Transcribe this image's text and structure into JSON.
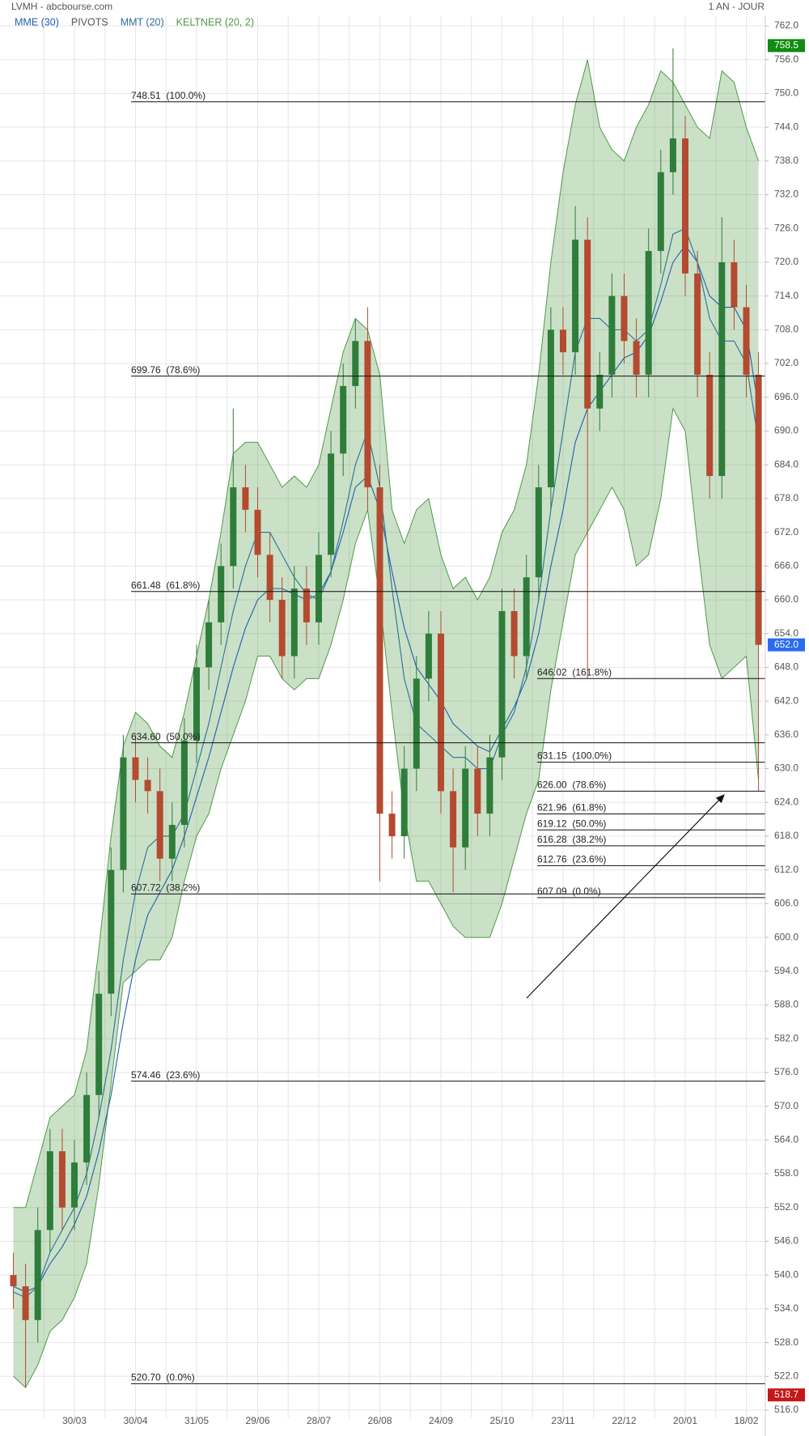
{
  "chart_data": {
    "type": "candlestick",
    "title": "LVMH - abcbourse.com",
    "subtitle": "1 AN - JOUR",
    "categories": [
      null,
      null,
      null,
      null,
      null,
      "30/03",
      null,
      null,
      null,
      null,
      "30/04",
      null,
      null,
      null,
      null,
      "31/05",
      null,
      null,
      null,
      null,
      "29/06",
      null,
      null,
      null,
      null,
      "28/07",
      null,
      null,
      null,
      null,
      "26/08",
      null,
      null,
      null,
      null,
      "24/09",
      null,
      null,
      null,
      null,
      "25/10",
      null,
      null,
      null,
      null,
      "23/11",
      null,
      null,
      null,
      null,
      "22/12",
      null,
      null,
      null,
      null,
      "20/01",
      null,
      null,
      null,
      null,
      "18/02",
      null
    ],
    "open": [
      540,
      538,
      532,
      548,
      562,
      552,
      560,
      572,
      590,
      612,
      632,
      628,
      626,
      614,
      620,
      635,
      648,
      656,
      666,
      680,
      676,
      668,
      660,
      650,
      662,
      656,
      668,
      686,
      698,
      706,
      680,
      622,
      618,
      630,
      646,
      654,
      626,
      616,
      630,
      622,
      632,
      658,
      650,
      664,
      680,
      708,
      704,
      724,
      694,
      700,
      714,
      706,
      700,
      722,
      736,
      742,
      718,
      700,
      682,
      720,
      712,
      700
    ],
    "high": [
      544,
      542,
      552,
      566,
      566,
      564,
      576,
      594,
      616,
      636,
      636,
      632,
      630,
      624,
      639,
      652,
      660,
      670,
      694,
      684,
      680,
      672,
      664,
      666,
      666,
      672,
      690,
      702,
      710,
      712,
      684,
      626,
      634,
      650,
      658,
      658,
      630,
      634,
      634,
      636,
      662,
      662,
      668,
      684,
      712,
      712,
      730,
      728,
      704,
      718,
      718,
      710,
      726,
      740,
      758,
      746,
      722,
      704,
      728,
      724,
      716,
      704
    ],
    "low": [
      534,
      520,
      528,
      544,
      548,
      548,
      556,
      568,
      586,
      608,
      624,
      622,
      610,
      610,
      616,
      631,
      644,
      652,
      662,
      672,
      664,
      656,
      646,
      646,
      652,
      652,
      664,
      682,
      694,
      676,
      610,
      614,
      614,
      626,
      642,
      622,
      608,
      612,
      618,
      618,
      628,
      646,
      646,
      660,
      676,
      700,
      700,
      646,
      690,
      696,
      702,
      696,
      696,
      718,
      732,
      714,
      696,
      678,
      678,
      708,
      696,
      626
    ],
    "close": [
      538,
      532,
      548,
      562,
      552,
      560,
      572,
      590,
      612,
      632,
      628,
      626,
      614,
      620,
      635,
      648,
      656,
      666,
      680,
      676,
      668,
      660,
      650,
      662,
      656,
      668,
      686,
      698,
      706,
      680,
      622,
      618,
      630,
      646,
      654,
      626,
      616,
      630,
      622,
      632,
      658,
      650,
      664,
      680,
      708,
      704,
      724,
      694,
      700,
      714,
      706,
      700,
      722,
      736,
      742,
      718,
      700,
      682,
      720,
      712,
      700,
      652
    ],
    "up_color": "#2e7d3a",
    "down_color": "#b44a30",
    "series": [
      {
        "name": "MME (30)",
        "color": "#1f5fae",
        "values": [
          538,
          537,
          538,
          542,
          545,
          549,
          554,
          562,
          572,
          585,
          596,
          604,
          608,
          612,
          618,
          625,
          632,
          640,
          648,
          655,
          660,
          662,
          662,
          661,
          660,
          661,
          665,
          672,
          680,
          682,
          676,
          665,
          655,
          648,
          645,
          642,
          638,
          636,
          634,
          633,
          637,
          641,
          646,
          654,
          666,
          676,
          688,
          694,
          697,
          700,
          703,
          704,
          707,
          713,
          720,
          723,
          720,
          714,
          712,
          712,
          708,
          694
        ]
      },
      {
        "name": "MMT (20)",
        "color": "#2b6f9c",
        "values": [
          537,
          536,
          538,
          544,
          548,
          552,
          558,
          568,
          580,
          596,
          608,
          616,
          618,
          618,
          622,
          630,
          638,
          648,
          658,
          666,
          672,
          672,
          668,
          664,
          661,
          660,
          665,
          674,
          684,
          690,
          680,
          662,
          646,
          638,
          636,
          634,
          632,
          632,
          630,
          630,
          636,
          640,
          648,
          660,
          676,
          690,
          704,
          710,
          710,
          708,
          708,
          706,
          708,
          716,
          725,
          726,
          720,
          710,
          706,
          706,
          702,
          688
        ]
      }
    ],
    "pivots": {
      "name": "PIVOTS",
      "color": "#555555"
    },
    "keltner": {
      "name": "KELTNER (20, 2)",
      "color": "#4f9a47",
      "upper": [
        552,
        552,
        560,
        568,
        570,
        572,
        580,
        598,
        618,
        634,
        640,
        638,
        634,
        632,
        640,
        650,
        660,
        672,
        686,
        688,
        688,
        684,
        680,
        682,
        680,
        684,
        694,
        704,
        710,
        708,
        700,
        676,
        670,
        676,
        678,
        668,
        662,
        664,
        660,
        664,
        672,
        676,
        684,
        700,
        720,
        736,
        748,
        756,
        744,
        740,
        738,
        744,
        748,
        754,
        752,
        748,
        744,
        742,
        754,
        752,
        744,
        738
      ],
      "lower": [
        522,
        520,
        524,
        530,
        532,
        536,
        542,
        556,
        574,
        592,
        594,
        596,
        596,
        600,
        610,
        618,
        622,
        630,
        636,
        642,
        650,
        650,
        646,
        644,
        646,
        646,
        652,
        660,
        670,
        676,
        660,
        640,
        622,
        610,
        610,
        606,
        602,
        600,
        600,
        600,
        606,
        614,
        622,
        628,
        644,
        656,
        668,
        672,
        676,
        680,
        676,
        666,
        668,
        678,
        694,
        690,
        670,
        652,
        646,
        648,
        650,
        628
      ]
    },
    "fib_left": [
      {
        "value": 748.51,
        "label": "748.51  (100.0%)"
      },
      {
        "value": 699.76,
        "label": "699.76  (78.6%)"
      },
      {
        "value": 661.48,
        "label": "661.48  (61.8%)"
      },
      {
        "value": 634.6,
        "label": "634.60  (50.0%)"
      },
      {
        "value": 607.72,
        "label": "607.72  (38.2%)"
      },
      {
        "value": 574.46,
        "label": "574.46  (23.6%)"
      },
      {
        "value": 520.7,
        "label": "520.70  (0.0%)"
      }
    ],
    "fib_right": [
      {
        "value": 646.02,
        "label": "646.02  (161.8%)"
      },
      {
        "value": 631.15,
        "label": "631.15  (100.0%)"
      },
      {
        "value": 626.0,
        "label": "626.00  (78.6%)"
      },
      {
        "value": 621.96,
        "label": "621.96  (61.8%)"
      },
      {
        "value": 619.12,
        "label": "619.12  (50.0%)"
      },
      {
        "value": 616.28,
        "label": "616.28  (38.2%)"
      },
      {
        "value": 612.76,
        "label": "612.76  (23.6%)"
      },
      {
        "value": 607.09,
        "label": "607.09  (0.0%)"
      }
    ],
    "price_tags": [
      {
        "value": 758.5,
        "color": "#138a13"
      },
      {
        "value": 652,
        "label": "652.0",
        "color": "#2a6cf0"
      },
      {
        "value": 518.7,
        "color": "#c41818"
      }
    ],
    "ylim": [
      516,
      762
    ],
    "yticks": [
      {
        "value": 516,
        "label": "516.0"
      },
      {
        "value": 522,
        "label": "522.0"
      },
      {
        "value": 528,
        "label": "528.0"
      },
      {
        "value": 534,
        "label": "534.0"
      },
      {
        "value": 540,
        "label": "540.0"
      },
      {
        "value": 546,
        "label": "546.0"
      },
      {
        "value": 552,
        "label": "552.0"
      },
      {
        "value": 558,
        "label": "558.0"
      },
      {
        "value": 564,
        "label": "564.0"
      },
      {
        "value": 570,
        "label": "570.0"
      },
      {
        "value": 576,
        "label": "576.0"
      },
      {
        "value": 582,
        "label": "582.0"
      },
      {
        "value": 588,
        "label": "588.0"
      },
      {
        "value": 594,
        "label": "594.0"
      },
      {
        "value": 600,
        "label": "600.0"
      },
      {
        "value": 606,
        "label": "606.0"
      },
      {
        "value": 612,
        "label": "612.0"
      },
      {
        "value": 618,
        "label": "618.0"
      },
      {
        "value": 624,
        "label": "624.0"
      },
      {
        "value": 630,
        "label": "630.0"
      },
      {
        "value": 636,
        "label": "636.0"
      },
      {
        "value": 642,
        "label": "642.0"
      },
      {
        "value": 648,
        "label": "648.0"
      },
      {
        "value": 654,
        "label": "654.0"
      },
      {
        "value": 660,
        "label": "660.0"
      },
      {
        "value": 666,
        "label": "666.0"
      },
      {
        "value": 672,
        "label": "672.0"
      },
      {
        "value": 678,
        "label": "678.0"
      },
      {
        "value": 684,
        "label": "684.0"
      },
      {
        "value": 690,
        "label": "690.0"
      },
      {
        "value": 696,
        "label": "696.0"
      },
      {
        "value": 702,
        "label": "702.0"
      },
      {
        "value": 708,
        "label": "708.0"
      },
      {
        "value": 714,
        "label": "714.0"
      },
      {
        "value": 720,
        "label": "720.0"
      },
      {
        "value": 726,
        "label": "726.0"
      },
      {
        "value": 732,
        "label": "732.0"
      },
      {
        "value": 738,
        "label": "738.0"
      },
      {
        "value": 744,
        "label": "744.0"
      },
      {
        "value": 750,
        "label": "750.0"
      },
      {
        "value": 756,
        "label": "756.0"
      },
      {
        "value": 762,
        "label": "762.0"
      }
    ],
    "grid": true
  }
}
